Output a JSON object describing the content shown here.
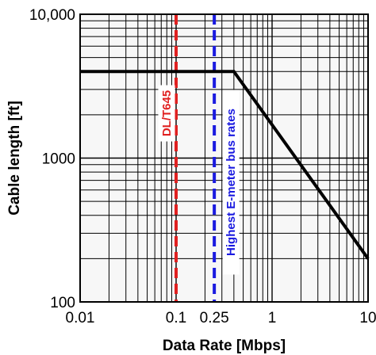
{
  "chart_data": {
    "type": "line",
    "xlabel": "Data Rate [Mbps]",
    "ylabel": "Cable length [ft]",
    "xscale": "log",
    "yscale": "log",
    "xlim": [
      0.01,
      10
    ],
    "ylim": [
      100,
      10000
    ],
    "grid": true,
    "x_ticks": [
      {
        "value": 0.01,
        "label": "0.01",
        "color": "#000000"
      },
      {
        "value": 0.1,
        "label": "0.1",
        "color": "#e02020"
      },
      {
        "value": 0.25,
        "label": "0.25",
        "color": "#1a1ae0"
      },
      {
        "value": 1,
        "label": "1",
        "color": "#000000"
      },
      {
        "value": 10,
        "label": "10",
        "color": "#000000"
      }
    ],
    "y_ticks": [
      {
        "value": 100,
        "label": "100"
      },
      {
        "value": 1000,
        "label": "1000"
      },
      {
        "value": 10000,
        "label": "10,000"
      }
    ],
    "series": [
      {
        "color": "#000000",
        "points": [
          [
            0.01,
            4000
          ],
          [
            0.4,
            4000
          ],
          [
            10,
            200
          ]
        ]
      }
    ],
    "vlines": [
      {
        "x": 0.1,
        "color": "#e02020",
        "dash": true,
        "label": "DL/T645"
      },
      {
        "x": 0.25,
        "color": "#1a1ae0",
        "dash": true,
        "label": "Highest E-meter bus rates"
      }
    ]
  }
}
